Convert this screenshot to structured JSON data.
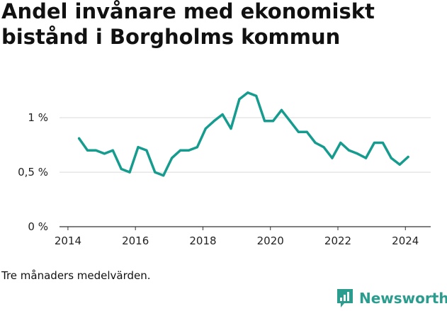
{
  "title": "Andel invånare med ekonomiskt bistånd i Borgholms kommun",
  "caption": "Tre månaders medelvärden.",
  "brand": {
    "name": "Newsworthy",
    "color": "#2a9d8f",
    "icon": "newsworthy-logo-icon"
  },
  "chart_data": {
    "type": "line",
    "title": "Andel invånare med ekonomiskt bistånd i Borgholms kommun",
    "xlabel": "",
    "ylabel": "",
    "xlim": [
      2013.75,
      2024.75
    ],
    "ylim": [
      0,
      1.3
    ],
    "grid": true,
    "line_color": "#169c8f",
    "x_ticks": [
      2014,
      2016,
      2018,
      2020,
      2022,
      2024
    ],
    "x_tick_labels": [
      "2014",
      "2016",
      "2018",
      "2020",
      "2022",
      "2024"
    ],
    "y_ticks": [
      0,
      0.5,
      1
    ],
    "y_tick_labels": [
      "0 %",
      "0,5 %",
      "1 %"
    ],
    "series": [
      {
        "x": [
          2014.33,
          2014.58,
          2014.83,
          2015.08,
          2015.33,
          2015.58,
          2015.83,
          2016.08,
          2016.33,
          2016.58,
          2016.83,
          2017.08,
          2017.33,
          2017.58,
          2017.83,
          2018.08,
          2018.33,
          2018.58,
          2018.83,
          2019.08,
          2019.33,
          2019.58,
          2019.83,
          2020.08,
          2020.33,
          2020.58,
          2020.83,
          2021.08,
          2021.33,
          2021.58,
          2021.83,
          2022.08,
          2022.33,
          2022.58,
          2022.83,
          2023.08,
          2023.33,
          2023.58,
          2023.83,
          2024.08
        ],
        "values": [
          0.81,
          0.7,
          0.7,
          0.67,
          0.7,
          0.53,
          0.5,
          0.73,
          0.7,
          0.5,
          0.47,
          0.63,
          0.7,
          0.7,
          0.73,
          0.9,
          0.97,
          1.03,
          0.9,
          1.17,
          1.23,
          1.2,
          0.97,
          0.97,
          1.07,
          0.97,
          0.87,
          0.87,
          0.77,
          0.73,
          0.63,
          0.77,
          0.7,
          0.67,
          0.63,
          0.77,
          0.77,
          0.63,
          0.57,
          0.64
        ]
      }
    ]
  }
}
